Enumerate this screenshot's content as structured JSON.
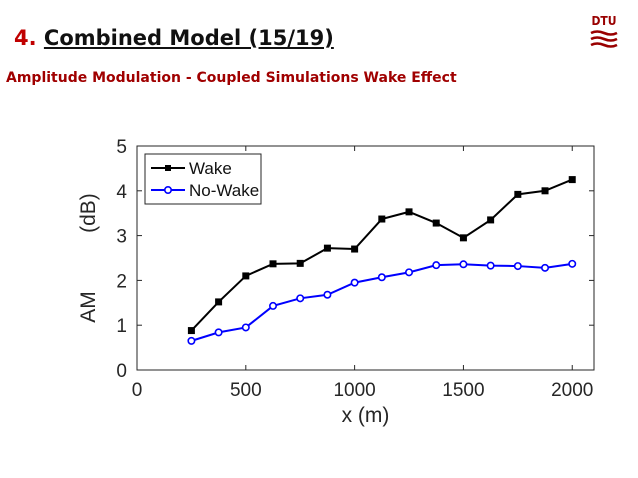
{
  "slide": {
    "section_number": "4.",
    "title": "Combined Model (15/19)",
    "subtitle": "Amplitude Modulation - Coupled Simulations Wake Effect",
    "logo_text": "DTU"
  },
  "colors": {
    "accent": "#c00000",
    "subtitle": "#a00000",
    "wake": "#000000",
    "no_wake": "#0000ff"
  },
  "chart_data": {
    "type": "line",
    "xlabel": "x (m)",
    "ylabel": "AM          (dB)",
    "xlim": [
      0,
      2100
    ],
    "ylim": [
      0,
      5
    ],
    "xticks": [
      0,
      500,
      1000,
      1500,
      2000
    ],
    "yticks": [
      0,
      1,
      2,
      3,
      4,
      5
    ],
    "grid": false,
    "legend_position": "top-left",
    "x": [
      250,
      375,
      500,
      625,
      750,
      875,
      1000,
      1125,
      1250,
      1375,
      1500,
      1625,
      1750,
      1875,
      2000
    ],
    "series": [
      {
        "name": "Wake",
        "marker": "square",
        "color": "#000000",
        "values": [
          0.88,
          1.52,
          2.1,
          2.37,
          2.38,
          2.72,
          2.7,
          3.37,
          3.53,
          3.28,
          2.95,
          3.35,
          3.92,
          4.0,
          4.25
        ]
      },
      {
        "name": "No-Wake",
        "marker": "circle",
        "color": "#0000ff",
        "values": [
          0.65,
          0.84,
          0.95,
          1.43,
          1.6,
          1.68,
          1.95,
          2.07,
          2.18,
          2.34,
          2.36,
          2.33,
          2.32,
          2.28,
          2.37
        ]
      }
    ]
  }
}
